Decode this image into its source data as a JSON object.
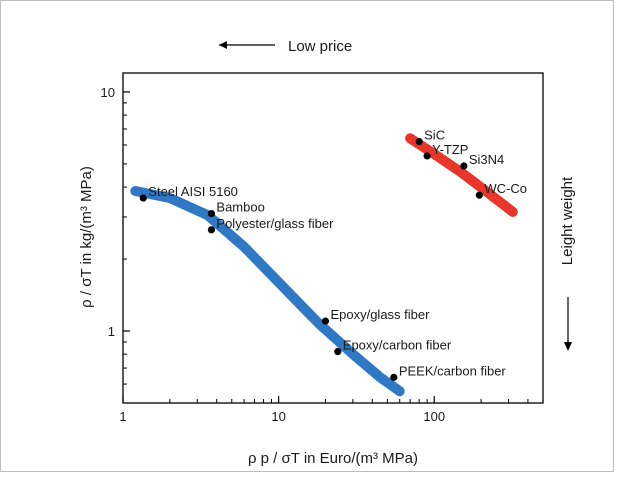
{
  "chart_data": {
    "type": "scatter",
    "title": "",
    "xlabel": "ρ p / σT in Euro/(m³ MPa)",
    "ylabel": "ρ / σT in kg/(m³ MPa)",
    "xscale": "log",
    "yscale": "log",
    "xlim": [
      1,
      500
    ],
    "ylim": [
      0.5,
      12
    ],
    "x_ticks": [
      {
        "value": 1,
        "label": "1"
      },
      {
        "value": 10,
        "label": "10"
      },
      {
        "value": 100,
        "label": "100"
      }
    ],
    "y_ticks": [
      {
        "value": 1,
        "label": "1"
      },
      {
        "value": 10,
        "label": "10"
      }
    ],
    "grid": false,
    "hints": {
      "low_price": "Low price",
      "light_weight": "Leight weight"
    },
    "points": [
      {
        "label": "Steel AISI 5160",
        "x": 1.35,
        "y": 3.6
      },
      {
        "label": "Bamboo",
        "x": 3.7,
        "y": 3.1
      },
      {
        "label": "Polyester/glass fiber",
        "x": 3.7,
        "y": 2.65
      },
      {
        "label": "Epoxy/glass fiber",
        "x": 20,
        "y": 1.1
      },
      {
        "label": "Epoxy/carbon fiber",
        "x": 24,
        "y": 0.82
      },
      {
        "label": "PEEK/carbon fiber",
        "x": 55,
        "y": 0.64
      },
      {
        "label": "SiC",
        "x": 80,
        "y": 6.2
      },
      {
        "label": "Y-TZP",
        "x": 90,
        "y": 5.4
      },
      {
        "label": "Si3N4",
        "x": 155,
        "y": 4.9
      },
      {
        "label": "WC-Co",
        "x": 195,
        "y": 3.7
      }
    ],
    "trend_bands": [
      {
        "group": "polymers-composites",
        "color": "#2f78c4",
        "x": [
          1.2,
          2,
          3.5,
          6,
          10,
          18,
          30,
          45,
          60
        ],
        "y": [
          3.85,
          3.6,
          3.05,
          2.25,
          1.6,
          1.08,
          0.8,
          0.64,
          0.56
        ]
      },
      {
        "group": "ceramics",
        "color": "#e8372a",
        "x": [
          70,
          100,
          150,
          220,
          320
        ],
        "y": [
          6.4,
          5.5,
          4.6,
          3.8,
          3.15
        ]
      }
    ]
  }
}
